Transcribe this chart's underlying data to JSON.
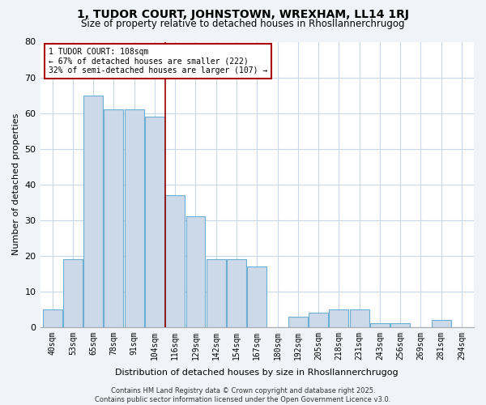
{
  "title1": "1, TUDOR COURT, JOHNSTOWN, WREXHAM, LL14 1RJ",
  "title2": "Size of property relative to detached houses in Rhosllannerchrugog",
  "xlabel": "Distribution of detached houses by size in Rhosllannerchrugog",
  "ylabel": "Number of detached properties",
  "categories": [
    "40sqm",
    "53sqm",
    "65sqm",
    "78sqm",
    "91sqm",
    "104sqm",
    "116sqm",
    "129sqm",
    "142sqm",
    "154sqm",
    "167sqm",
    "180sqm",
    "192sqm",
    "205sqm",
    "218sqm",
    "231sqm",
    "243sqm",
    "256sqm",
    "269sqm",
    "281sqm",
    "294sqm"
  ],
  "values": [
    5,
    19,
    65,
    61,
    61,
    59,
    37,
    31,
    19,
    19,
    17,
    0,
    3,
    4,
    5,
    5,
    1,
    1,
    0,
    2,
    0
  ],
  "bar_color": "#ccd9e8",
  "bar_edge_color": "#6baed6",
  "red_line_x": 5.5,
  "annotation_text": "1 TUDOR COURT: 108sqm\n← 67% of detached houses are smaller (222)\n32% of semi-detached houses are larger (107) →",
  "annotation_box_facecolor": "#ffffff",
  "annotation_box_edgecolor": "#aa0000",
  "ylim": [
    0,
    80
  ],
  "yticks": [
    0,
    10,
    20,
    30,
    40,
    50,
    60,
    70,
    80
  ],
  "grid_color": "#c8d8e8",
  "plot_bg_color": "#ffffff",
  "fig_bg_color": "#f0f4f8",
  "footer": "Contains HM Land Registry data © Crown copyright and database right 2025.\nContains public sector information licensed under the Open Government Licence v3.0."
}
